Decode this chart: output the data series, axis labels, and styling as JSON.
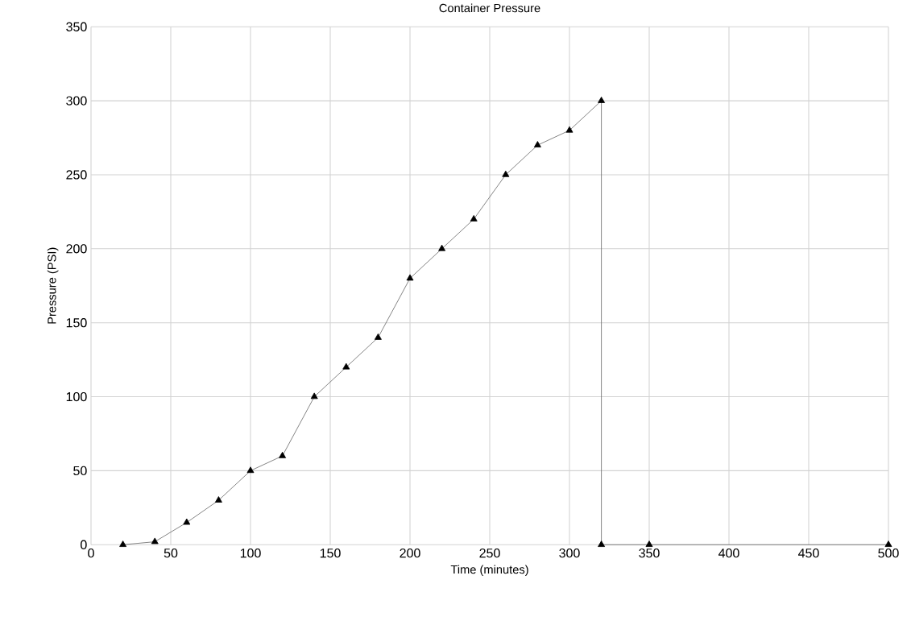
{
  "chart_data": {
    "type": "line",
    "title": "Container Pressure",
    "xlabel": "Time (minutes)",
    "ylabel": "Pressure (PSI)",
    "series": [
      {
        "color": "#000000",
        "x": [
          20,
          40,
          60,
          80,
          100,
          120,
          140,
          160,
          180,
          200,
          220,
          240,
          260,
          280,
          300,
          320,
          320,
          350,
          500
        ],
        "values": [
          0,
          2,
          15,
          30,
          50,
          60,
          100,
          120,
          140,
          180,
          200,
          220,
          250,
          270,
          280,
          300,
          0,
          0,
          0
        ]
      }
    ],
    "xlim": [
      0,
      500
    ],
    "xticks": [
      0,
      50,
      100,
      150,
      200,
      250,
      300,
      350,
      400,
      450,
      500
    ],
    "ylim": [
      0,
      350
    ],
    "yticks": [
      0,
      50,
      100,
      150,
      200,
      250,
      300,
      350
    ],
    "grid": true,
    "marker": "triangle",
    "line_style": "solid"
  }
}
